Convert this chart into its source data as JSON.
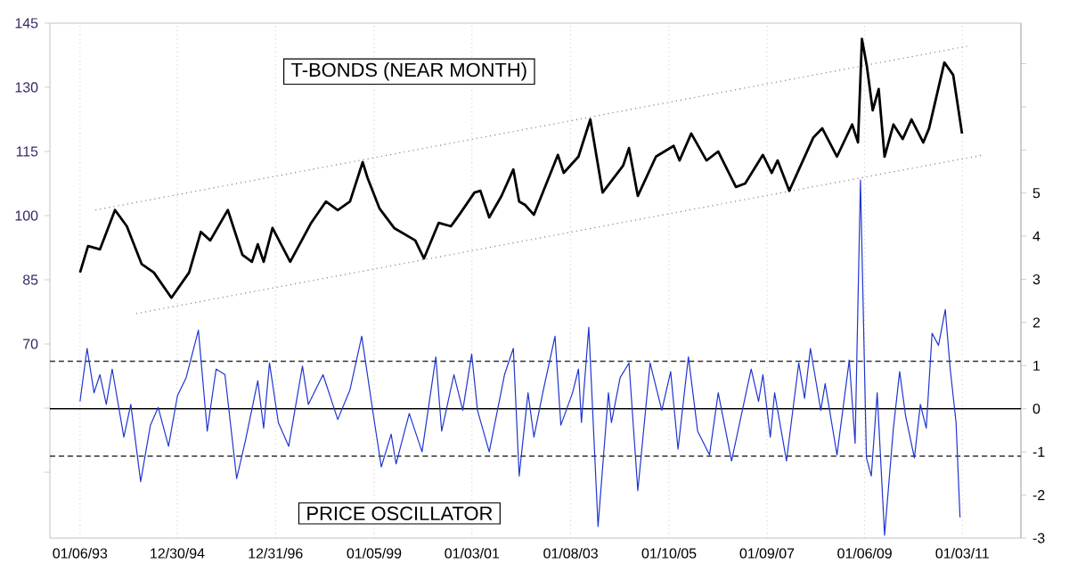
{
  "chart_data": {
    "type": "line",
    "annotations": [
      "T-BONDS (NEAR MONTH)",
      "PRICE OSCILLATOR"
    ],
    "xlim": [
      "1992-05-25",
      "2012-03-13"
    ],
    "xticks": [
      {
        "value": "1993-01-06",
        "label": "01/06/93"
      },
      {
        "value": "1994-12-30",
        "label": "12/30/94"
      },
      {
        "value": "1996-12-31",
        "label": "12/31/96"
      },
      {
        "value": "1999-01-05",
        "label": "01/05/99"
      },
      {
        "value": "2001-01-03",
        "label": "01/03/01"
      },
      {
        "value": "2003-01-08",
        "label": "01/08/03"
      },
      {
        "value": "2005-01-10",
        "label": "01/10/05"
      },
      {
        "value": "2007-01-09",
        "label": "01/09/07"
      },
      {
        "value": "2009-01-06",
        "label": "01/06/09"
      },
      {
        "value": "2011-01-03",
        "label": "01/03/11"
      }
    ],
    "ylim": [
      24.6,
      145
    ],
    "yticks": [
      {
        "value": 40,
        "label": null
      },
      {
        "value": 55,
        "label": null
      },
      70,
      85,
      100,
      115,
      130,
      145
    ],
    "y2lim": [
      -3,
      8.94
    ],
    "y2ticks": [
      -3,
      -2,
      -1,
      0,
      1,
      2,
      3,
      4,
      5,
      {
        "value": 6,
        "label": null
      },
      {
        "value": 7,
        "label": null
      },
      {
        "value": 8,
        "label": null
      }
    ],
    "grid": "x",
    "ref_lines": [
      {
        "axis": "y2",
        "value": 1.1,
        "color": "#333333",
        "line_style": "dashed"
      },
      {
        "axis": "y2",
        "value": -1.1,
        "color": "#333333",
        "line_style": "dashed"
      },
      {
        "axis": "y2",
        "value": 0,
        "color": "#000000",
        "line_style": "solid"
      }
    ],
    "series": [
      {
        "color": "#808080",
        "line_style": "dotted",
        "x": [
          "1993-04-29",
          "2011-02-07"
        ],
        "values": [
          101.3,
          139.6
        ]
      },
      {
        "color": "#808080",
        "line_style": "dotted",
        "x": [
          "1994-02-28",
          "2011-06-09"
        ],
        "values": [
          77.1,
          114.2
        ]
      },
      {
        "color": "#000000",
        "line_style": "solid",
        "x": [
          "1993-01-06",
          "1993-03-05",
          "1993-06-02",
          "1993-09-23",
          "1993-12-20",
          "1994-04-08",
          "1994-07-08",
          "1994-11-17",
          "1995-03-27",
          "1995-06-23",
          "1995-09-02",
          "1996-01-11",
          "1996-04-29",
          "1996-07-08",
          "1996-08-21",
          "1996-10-04",
          "1996-12-09",
          "1997-04-19",
          "1997-09-23",
          "1998-01-11",
          "1998-04-08",
          "1998-07-08",
          "1998-10-11",
          "1998-11-17",
          "1999-02-14",
          "1999-06-02",
          "1999-11-07",
          "2000-01-11",
          "2000-04-29",
          "2000-07-29",
          "2000-10-04",
          "2001-01-22",
          "2001-03-05",
          "2001-05-10",
          "2001-08-10",
          "2001-11-07",
          "2001-12-20",
          "2002-02-03",
          "2002-04-08",
          "2002-10-04",
          "2002-11-17",
          "2003-03-05",
          "2003-06-02",
          "2003-09-02",
          "2004-02-03",
          "2004-03-16",
          "2004-05-21",
          "2004-10-04",
          "2005-02-14",
          "2005-03-27",
          "2005-06-23",
          "2005-10-15",
          "2006-01-11",
          "2006-05-21",
          "2006-07-29",
          "2006-12-09",
          "2007-02-14",
          "2007-03-27",
          "2007-06-23",
          "2007-12-20",
          "2008-02-25",
          "2008-06-13",
          "2008-10-04",
          "2008-11-17",
          "2008-12-16",
          "2009-01-22",
          "2009-03-05",
          "2009-04-19",
          "2009-06-02",
          "2009-08-07",
          "2009-10-15",
          "2009-12-20",
          "2010-03-16",
          "2010-04-29",
          "2010-08-21",
          "2010-10-26",
          "2010-12-31"
        ],
        "values": [
          86.7,
          92.9,
          92.1,
          101.3,
          97.5,
          88.7,
          86.7,
          80.8,
          86.7,
          96.2,
          94.2,
          101.3,
          90.8,
          89.2,
          93.3,
          89.2,
          97.1,
          89.2,
          98.3,
          103.3,
          101.3,
          103.3,
          112.5,
          108.8,
          101.7,
          97.1,
          94.2,
          90.0,
          98.3,
          97.5,
          100.4,
          105.4,
          105.8,
          99.6,
          104.6,
          110.8,
          103.3,
          102.5,
          100.2,
          114.2,
          110.0,
          113.8,
          122.5,
          105.4,
          111.7,
          115.8,
          104.6,
          113.8,
          116.3,
          112.9,
          119.2,
          112.9,
          115.0,
          106.7,
          107.5,
          114.2,
          110.0,
          112.9,
          105.8,
          118.3,
          120.4,
          113.8,
          121.3,
          117.1,
          141.3,
          135.0,
          124.6,
          129.6,
          113.8,
          121.3,
          117.9,
          122.5,
          117.1,
          120.4,
          135.8,
          132.9,
          119.2
        ]
      },
      {
        "axis": "y2",
        "color": "#1f35d0",
        "line_style": "solid",
        "x": [
          "1993-01-06",
          "1993-02-28",
          "1993-04-19",
          "1993-06-02",
          "1993-07-19",
          "1993-09-02",
          "1993-11-28",
          "1994-01-19",
          "1994-04-01",
          "1994-06-13",
          "1994-08-10",
          "1994-10-26",
          "1995-01-01",
          "1995-03-05",
          "1995-06-05",
          "1995-08-10",
          "1995-10-15",
          "1995-12-20",
          "1996-03-16",
          "1996-05-21",
          "1996-08-21",
          "1996-10-04",
          "1996-11-17",
          "1997-01-22",
          "1997-04-08",
          "1997-07-19",
          "1997-09-02",
          "1997-12-20",
          "1998-04-08",
          "1998-07-08",
          "1998-10-04",
          "1999-01-01",
          "1999-02-28",
          "1999-05-10",
          "1999-06-16",
          "1999-09-23",
          "1999-12-27",
          "2000-04-08",
          "2000-05-21",
          "2000-08-21",
          "2000-10-26",
          "2001-01-01",
          "2001-02-14",
          "2001-05-10",
          "2001-09-02",
          "2001-11-07",
          "2001-12-20",
          "2002-02-25",
          "2002-04-08",
          "2002-06-13",
          "2002-09-13",
          "2002-10-26",
          "2003-01-22",
          "2003-03-05",
          "2003-03-27",
          "2003-05-21",
          "2003-07-29",
          "2003-10-15",
          "2003-11-07",
          "2004-01-11",
          "2004-03-16",
          "2004-05-21",
          "2004-08-21",
          "2004-11-17",
          "2005-01-22",
          "2005-03-16",
          "2005-06-02",
          "2005-08-10",
          "2005-11-07",
          "2006-01-11",
          "2006-04-19",
          "2006-09-13",
          "2006-11-07",
          "2006-12-09",
          "2007-02-03",
          "2007-03-05",
          "2007-06-02",
          "2007-09-02",
          "2007-10-15",
          "2007-11-28",
          "2008-02-14",
          "2008-03-16",
          "2008-06-13",
          "2008-09-13",
          "2008-10-26",
          "2008-12-05",
          "2009-01-19",
          "2009-02-25",
          "2009-04-08",
          "2009-06-02",
          "2009-08-07",
          "2009-09-23",
          "2009-11-07",
          "2010-01-11",
          "2010-02-25",
          "2010-04-08",
          "2010-05-21",
          "2010-07-08",
          "2010-08-28",
          "2010-10-04",
          "2010-11-17",
          "2010-12-16"
        ],
        "values": [
          0.17,
          1.4,
          0.37,
          0.79,
          0.1,
          0.92,
          -0.66,
          0.1,
          -1.69,
          -0.38,
          0.03,
          -0.87,
          0.3,
          0.72,
          1.82,
          -0.52,
          0.92,
          0.79,
          -1.62,
          -0.73,
          0.65,
          -0.45,
          1.06,
          -0.32,
          -0.87,
          0.99,
          0.1,
          0.79,
          -0.25,
          0.44,
          1.68,
          -0.18,
          -1.35,
          -0.59,
          -1.28,
          -0.11,
          -1.0,
          1.2,
          -0.52,
          0.79,
          -0.04,
          1.27,
          -0.04,
          -1.0,
          0.79,
          1.4,
          -1.56,
          0.37,
          -0.66,
          0.37,
          1.68,
          -0.38,
          0.37,
          0.92,
          -0.32,
          1.89,
          -2.73,
          0.37,
          -0.32,
          0.72,
          1.06,
          -1.9,
          1.06,
          -0.04,
          0.86,
          -0.94,
          1.2,
          -0.52,
          -1.07,
          0.37,
          -1.21,
          0.92,
          0.17,
          0.79,
          -0.66,
          0.37,
          -1.21,
          1.06,
          0.24,
          1.4,
          -0.04,
          0.58,
          -1.07,
          1.13,
          -0.8,
          5.3,
          -1.14,
          -1.56,
          0.37,
          -2.93,
          -0.45,
          0.86,
          -0.18,
          -1.14,
          0.1,
          -0.45,
          1.75,
          1.47,
          2.3,
          0.92,
          -0.32,
          -2.52
        ]
      }
    ]
  }
}
